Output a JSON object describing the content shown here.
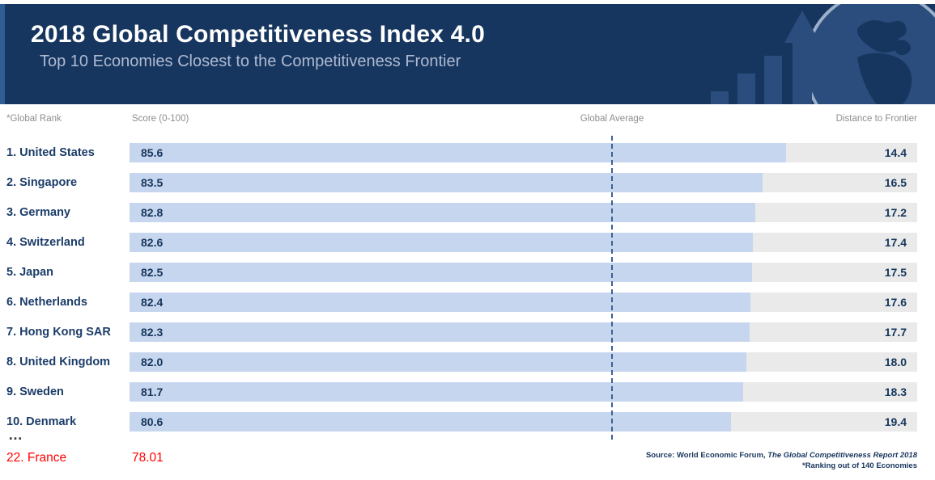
{
  "header": {
    "title": "2018 Global Competitiveness Index 4.0",
    "subtitle": "Top 10 Economies Closest to the Competitiveness Frontier"
  },
  "columns": {
    "rank": "*Global Rank",
    "score": "Score (0-100)",
    "global_average": "Global Average",
    "distance": "Distance to Frontier"
  },
  "chart_data": {
    "type": "bar",
    "orientation": "horizontal",
    "title": "2018 Global Competitiveness Index 4.0",
    "subtitle": "Top 10 Economies Closest to the Competitiveness Frontier",
    "categories": [
      "1. United States",
      "2. Singapore",
      "3. Germany",
      "4. Switzerland",
      "5. Japan",
      "6. Netherlands",
      "7. Hong Kong SAR",
      "8. United Kingdom",
      "9. Sweden",
      "10. Denmark"
    ],
    "series": [
      {
        "name": "Score (0-100)",
        "values": [
          85.6,
          83.5,
          82.8,
          82.6,
          82.5,
          82.4,
          82.3,
          82.0,
          81.7,
          80.6
        ]
      },
      {
        "name": "Distance to Frontier",
        "values": [
          14.4,
          16.5,
          17.2,
          17.4,
          17.5,
          17.6,
          17.7,
          18.0,
          18.3,
          19.4
        ]
      }
    ],
    "xlim": [
      0,
      100
    ],
    "annotations": [
      {
        "type": "vline",
        "label": "Global Average"
      }
    ],
    "legend_position": "none",
    "grid": false
  },
  "extra": {
    "ellipsis": "…",
    "label": "22. France",
    "score": "78.01"
  },
  "footer": {
    "source_prefix": "Source: World Economic Forum, ",
    "source_title_italic": "The Global Competitiveness Report 2018",
    "ranking_note": "*Ranking out of 140 Economies"
  },
  "colors": {
    "banner_navy": "#17365f",
    "banner_accent": "#2f5e94",
    "banner_art": "#2b4d7d",
    "bar_blue": "#c7d6ef",
    "bar_gray": "#eaeaea",
    "text_navy": "#16365c",
    "header_gray": "#8e8e8e",
    "highlight_red": "#ff0000",
    "average_line": "#3c6194"
  }
}
